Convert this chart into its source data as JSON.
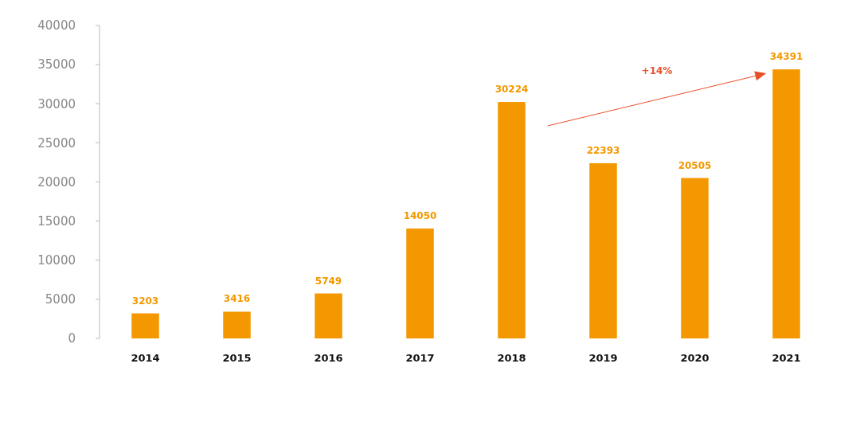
{
  "chart_data": {
    "type": "bar",
    "categories": [
      "2014",
      "2015",
      "2016",
      "2017",
      "2018",
      "2019",
      "2020",
      "2021"
    ],
    "values": [
      3203,
      3416,
      5749,
      14050,
      30224,
      22393,
      20505,
      34391
    ],
    "color": "#f39800",
    "ylim": [
      0,
      40000
    ],
    "yticks": [
      0,
      5000,
      10000,
      15000,
      20000,
      25000,
      30000,
      35000,
      40000
    ],
    "grid": false,
    "data_labels": true,
    "annotations": [
      "+14%"
    ]
  }
}
